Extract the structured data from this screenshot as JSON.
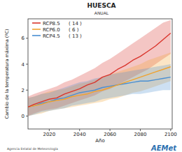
{
  "chart_data": {
    "type": "line",
    "title": "HUESCA",
    "subtitle": "ANUAL",
    "x_label": "Año",
    "y_label": "Cambio de la temperatura máxima (ºC)",
    "source": "Agencia Estatal de Meteorología",
    "logo": "AEMet",
    "legend": "top-left",
    "grid": false,
    "xlim": [
      2006,
      2101
    ],
    "ylim": [
      -1,
      7.5
    ],
    "xticks": [
      2020,
      2040,
      2060,
      2080,
      2100
    ],
    "yticks": [
      0,
      2,
      4,
      6
    ],
    "x": [
      2006,
      2010,
      2015,
      2020,
      2025,
      2030,
      2035,
      2040,
      2045,
      2050,
      2055,
      2060,
      2065,
      2070,
      2075,
      2080,
      2085,
      2090,
      2095,
      2100
    ],
    "series": [
      {
        "name": "RCP8.5",
        "color": "#d9342b",
        "count": 14,
        "count_label": "( 14 )",
        "values": [
          0.7,
          0.9,
          1.1,
          1.3,
          1.4,
          1.7,
          1.9,
          2.1,
          2.4,
          2.6,
          3.0,
          3.2,
          3.6,
          3.9,
          4.3,
          4.6,
          5.0,
          5.4,
          5.9,
          6.4
        ],
        "low": [
          0.0,
          0.2,
          0.4,
          0.5,
          0.6,
          0.8,
          1.0,
          1.2,
          1.4,
          1.6,
          1.9,
          2.1,
          2.4,
          2.7,
          3.0,
          3.3,
          3.6,
          4.0,
          4.4,
          4.8
        ],
        "high": [
          1.5,
          1.7,
          1.9,
          2.1,
          2.3,
          2.6,
          2.8,
          3.1,
          3.4,
          3.7,
          4.1,
          4.4,
          4.8,
          5.2,
          5.6,
          6.0,
          6.4,
          6.8,
          7.2,
          7.4
        ]
      },
      {
        "name": "RCP6.0",
        "color": "#f0a22e",
        "count": 6,
        "count_label": "( 6 )",
        "values": [
          0.7,
          0.8,
          0.9,
          1.1,
          1.2,
          1.3,
          1.5,
          1.6,
          1.7,
          1.9,
          2.0,
          2.2,
          2.4,
          2.6,
          2.8,
          3.0,
          3.2,
          3.4,
          3.6,
          3.8
        ],
        "low": [
          0.0,
          0.1,
          0.2,
          0.4,
          0.5,
          0.6,
          0.7,
          0.8,
          0.9,
          1.0,
          1.1,
          1.3,
          1.4,
          1.6,
          1.8,
          1.9,
          2.1,
          2.3,
          2.5,
          2.7
        ],
        "high": [
          1.4,
          1.5,
          1.7,
          1.9,
          2.0,
          2.1,
          2.3,
          2.5,
          2.6,
          2.8,
          3.0,
          3.2,
          3.4,
          3.6,
          3.8,
          4.0,
          4.3,
          4.5,
          4.7,
          4.9
        ]
      },
      {
        "name": "RCP4.5",
        "color": "#4a8fd2",
        "count": 13,
        "count_label": "( 13 )",
        "values": [
          0.7,
          0.8,
          1.0,
          1.1,
          1.3,
          1.4,
          1.6,
          1.8,
          1.9,
          2.0,
          2.2,
          2.3,
          2.4,
          2.5,
          2.6,
          2.7,
          2.7,
          2.8,
          2.9,
          3.0
        ],
        "low": [
          0.0,
          0.1,
          0.3,
          0.4,
          0.5,
          0.6,
          0.8,
          0.9,
          1.0,
          1.1,
          1.3,
          1.4,
          1.5,
          1.6,
          1.7,
          1.7,
          1.8,
          1.9,
          2.0,
          2.0
        ],
        "high": [
          1.4,
          1.5,
          1.7,
          1.8,
          2.0,
          2.2,
          2.4,
          2.6,
          2.7,
          2.9,
          3.0,
          3.2,
          3.3,
          3.4,
          3.5,
          3.6,
          3.7,
          3.8,
          3.9,
          4.0
        ]
      }
    ]
  }
}
